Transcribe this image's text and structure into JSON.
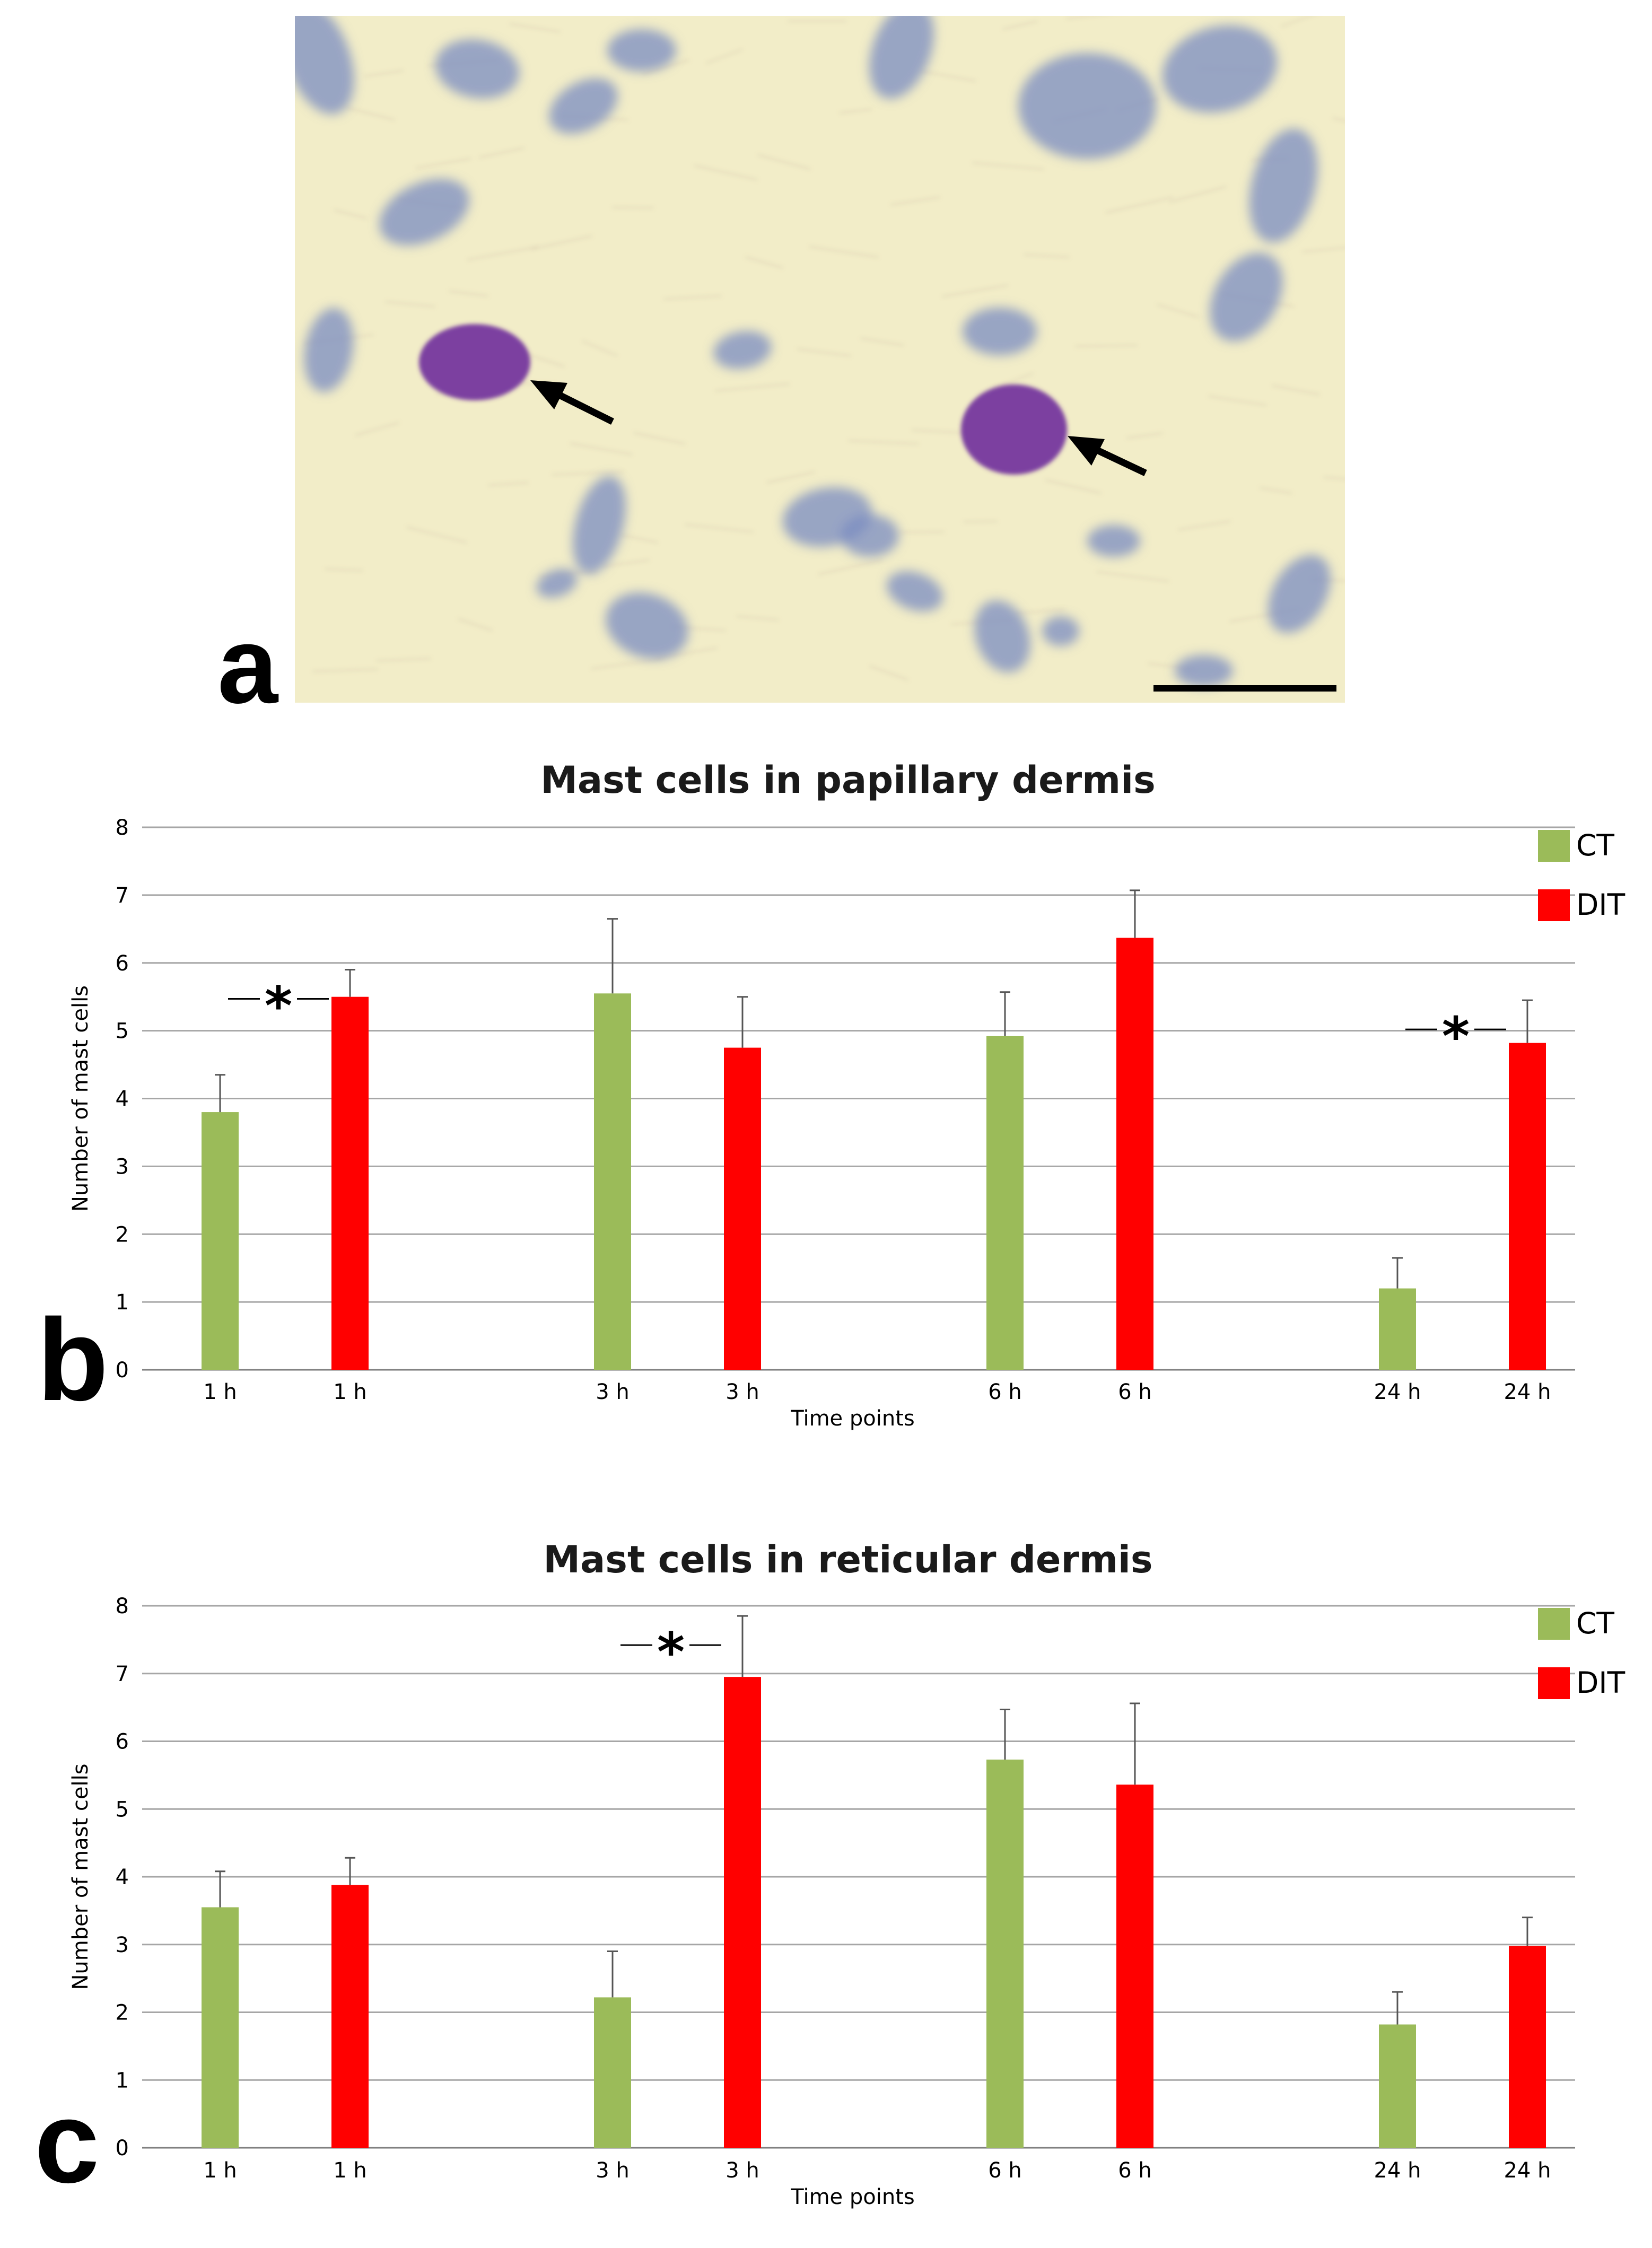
{
  "panels": {
    "a": "a",
    "b": "b",
    "c": "c"
  },
  "colors": {
    "CT": "#9bbb59",
    "DIT": "#ff0000",
    "grid": "#a6a6a6",
    "micrograph_bg": "#f2edc8",
    "nucleus": "#7a8cc2",
    "mast_cell": "#7b3fa0"
  },
  "micrograph": {
    "description_free": true,
    "arrows": 2,
    "scale_bar": true
  },
  "chart_data": [
    {
      "type": "bar",
      "title": "Mast cells in papillary dermis",
      "xlabel": "Time points",
      "ylabel": "Number of mast cells",
      "ylim": [
        0,
        8
      ],
      "yticks": [
        "0",
        "1",
        "2",
        "3",
        "4",
        "5",
        "6",
        "7",
        "8"
      ],
      "grid": true,
      "legend_position": "top-right",
      "legend": [
        "CT",
        "DIT"
      ],
      "bars": [
        {
          "label": "1 h",
          "series": "CT",
          "value": 3.8,
          "error": 0.55
        },
        {
          "label": "1 h",
          "series": "DIT",
          "value": 5.5,
          "error": 0.4
        },
        {
          "label": "3 h",
          "series": "CT",
          "value": 5.55,
          "error": 1.1
        },
        {
          "label": "3 h",
          "series": "DIT",
          "value": 4.75,
          "error": 0.75
        },
        {
          "label": "6 h",
          "series": "CT",
          "value": 4.92,
          "error": 0.65
        },
        {
          "label": "6 h",
          "series": "DIT",
          "value": 6.37,
          "error": 0.7
        },
        {
          "label": "24 h",
          "series": "CT",
          "value": 1.2,
          "error": 0.45
        },
        {
          "label": "24 h",
          "series": "DIT",
          "value": 4.82,
          "error": 0.63
        }
      ],
      "significance": [
        {
          "label": "*",
          "bar_index": 1
        },
        {
          "label": "*",
          "bar_index": 7
        }
      ]
    },
    {
      "type": "bar",
      "title": "Mast cells in reticular dermis",
      "xlabel": "Time points",
      "ylabel": "Number of mast cells",
      "ylim": [
        0,
        8
      ],
      "yticks": [
        "0",
        "1",
        "2",
        "3",
        "4",
        "5",
        "6",
        "7",
        "8"
      ],
      "grid": true,
      "legend_position": "top-right",
      "legend": [
        "CT",
        "DIT"
      ],
      "bars": [
        {
          "label": "1 h",
          "series": "CT",
          "value": 3.55,
          "error": 0.53
        },
        {
          "label": "1 h",
          "series": "DIT",
          "value": 3.88,
          "error": 0.4
        },
        {
          "label": "3 h",
          "series": "CT",
          "value": 2.22,
          "error": 0.68
        },
        {
          "label": "3 h",
          "series": "DIT",
          "value": 6.95,
          "error": 0.9
        },
        {
          "label": "6 h",
          "series": "CT",
          "value": 5.73,
          "error": 0.74
        },
        {
          "label": "6 h",
          "series": "DIT",
          "value": 5.36,
          "error": 1.2
        },
        {
          "label": "24 h",
          "series": "CT",
          "value": 1.82,
          "error": 0.48
        },
        {
          "label": "24 h",
          "series": "DIT",
          "value": 2.98,
          "error": 0.42
        }
      ],
      "significance": [
        {
          "label": "*",
          "bar_index": 3
        }
      ]
    }
  ]
}
